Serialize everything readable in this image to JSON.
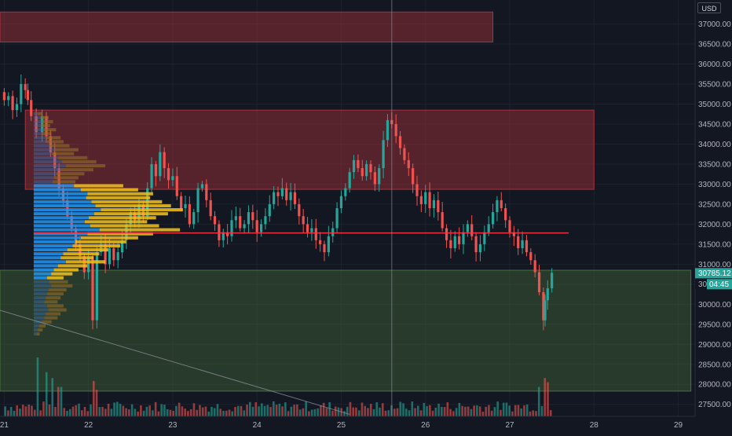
{
  "chart": {
    "currency": "USD",
    "last_price": "30785.12",
    "countdown": "04:45",
    "hidden_price_fragment": "30",
    "y_axis_ticks": [
      "37000.00",
      "36500.00",
      "36000.00",
      "35500.00",
      "35000.00",
      "34500.00",
      "34000.00",
      "33500.00",
      "33000.00",
      "32500.00",
      "32000.00",
      "31500.00",
      "31000.00",
      "30500.00",
      "30000.00",
      "29500.00",
      "29000.00",
      "28500.00",
      "28000.00",
      "27500.00"
    ],
    "x_axis_ticks": [
      "21",
      "22",
      "23",
      "24",
      "25",
      "26",
      "27",
      "28",
      "29"
    ],
    "colors": {
      "background": "#131722",
      "grid": "#1e222d",
      "bull": "#26a69a",
      "bear": "#ef5350",
      "poc_line": "#f23645",
      "resistance_zone": "#b2353f",
      "support_zone": "#4c7a3d",
      "volume_profile_value": "#f5c21b",
      "volume_profile_value_area": "#2196f3",
      "volume_profile_outside": "#8d6a2a",
      "price_badge": "#26a69a"
    }
  },
  "chart_data": {
    "type": "candlestick",
    "y_range": [
      27200,
      37600
    ],
    "x_range": [
      20.95,
      29.2
    ],
    "x_ticks": [
      21,
      22,
      23,
      24,
      25,
      26,
      27,
      28,
      29
    ],
    "zones": [
      {
        "name": "upper resistance",
        "from_x": 20.95,
        "to_x": 26.8,
        "low": 36550,
        "high": 37300
      },
      {
        "name": "resistance",
        "from_x": 21.25,
        "to_x": 28.0,
        "low": 32870,
        "high": 34850
      },
      {
        "name": "support",
        "from_x": 20.95,
        "to_x": 29.15,
        "low": 27830,
        "high": 30850
      }
    ],
    "poc_line": {
      "price": 31780,
      "from_x": 21.35,
      "to_x": 27.7
    },
    "crosshair_x": 25.6,
    "diagonal_line": {
      "from": [
        20.95,
        29850
      ],
      "to": [
        25.1,
        27250
      ]
    },
    "volume_profile": {
      "x_start": 21.35,
      "row_height": 100,
      "bins": [
        {
          "price": 34700,
          "value": 0.06,
          "area": "outside"
        },
        {
          "price": 34600,
          "value": 0.1,
          "area": "outside"
        },
        {
          "price": 34500,
          "value": 0.13,
          "area": "outside"
        },
        {
          "price": 34400,
          "value": 0.11,
          "area": "outside"
        },
        {
          "price": 34300,
          "value": 0.15,
          "area": "outside"
        },
        {
          "price": 34200,
          "value": 0.12,
          "area": "outside"
        },
        {
          "price": 34100,
          "value": 0.18,
          "area": "outside"
        },
        {
          "price": 34000,
          "value": 0.2,
          "area": "outside"
        },
        {
          "price": 33900,
          "value": 0.24,
          "area": "outside"
        },
        {
          "price": 33800,
          "value": 0.3,
          "area": "outside"
        },
        {
          "price": 33700,
          "value": 0.27,
          "area": "outside"
        },
        {
          "price": 33600,
          "value": 0.36,
          "area": "outside"
        },
        {
          "price": 33500,
          "value": 0.42,
          "area": "outside"
        },
        {
          "price": 33400,
          "value": 0.48,
          "area": "outside"
        },
        {
          "price": 33300,
          "value": 0.4,
          "area": "outside"
        },
        {
          "price": 33200,
          "value": 0.34,
          "area": "outside"
        },
        {
          "price": 33100,
          "value": 0.3,
          "area": "outside"
        },
        {
          "price": 33000,
          "value": 0.28,
          "area": "outside"
        },
        {
          "price": 32900,
          "value": 0.6,
          "area": "value"
        },
        {
          "price": 32800,
          "value": 0.7,
          "area": "value"
        },
        {
          "price": 32700,
          "value": 0.8,
          "area": "value"
        },
        {
          "price": 32600,
          "value": 0.78,
          "area": "value"
        },
        {
          "price": 32500,
          "value": 0.86,
          "area": "value"
        },
        {
          "price": 32400,
          "value": 0.92,
          "area": "value"
        },
        {
          "price": 32300,
          "value": 1.0,
          "area": "value"
        },
        {
          "price": 32200,
          "value": 0.9,
          "area": "value"
        },
        {
          "price": 32100,
          "value": 0.82,
          "area": "value"
        },
        {
          "price": 32000,
          "value": 0.76,
          "area": "value"
        },
        {
          "price": 31900,
          "value": 0.84,
          "area": "value"
        },
        {
          "price": 31800,
          "value": 0.98,
          "area": "value"
        },
        {
          "price": 31700,
          "value": 0.8,
          "area": "value"
        },
        {
          "price": 31600,
          "value": 0.7,
          "area": "value"
        },
        {
          "price": 31500,
          "value": 0.62,
          "area": "value"
        },
        {
          "price": 31400,
          "value": 0.58,
          "area": "value"
        },
        {
          "price": 31300,
          "value": 0.5,
          "area": "value"
        },
        {
          "price": 31200,
          "value": 0.44,
          "area": "value"
        },
        {
          "price": 31100,
          "value": 0.4,
          "area": "value"
        },
        {
          "price": 31000,
          "value": 0.48,
          "area": "value"
        },
        {
          "price": 30900,
          "value": 0.36,
          "area": "value"
        },
        {
          "price": 30800,
          "value": 0.3,
          "area": "value"
        },
        {
          "price": 30700,
          "value": 0.26,
          "area": "value"
        },
        {
          "price": 30600,
          "value": 0.2,
          "area": "value"
        },
        {
          "price": 30500,
          "value": 0.23,
          "area": "outside"
        },
        {
          "price": 30400,
          "value": 0.26,
          "area": "outside"
        },
        {
          "price": 30300,
          "value": 0.22,
          "area": "outside"
        },
        {
          "price": 30200,
          "value": 0.2,
          "area": "outside"
        },
        {
          "price": 30100,
          "value": 0.18,
          "area": "outside"
        },
        {
          "price": 30000,
          "value": 0.16,
          "area": "outside"
        },
        {
          "price": 29900,
          "value": 0.2,
          "area": "outside"
        },
        {
          "price": 29800,
          "value": 0.22,
          "area": "outside"
        },
        {
          "price": 29700,
          "value": 0.18,
          "area": "outside"
        },
        {
          "price": 29600,
          "value": 0.16,
          "area": "outside"
        },
        {
          "price": 29500,
          "value": 0.12,
          "area": "outside"
        },
        {
          "price": 29400,
          "value": 0.08,
          "area": "outside"
        },
        {
          "price": 29300,
          "value": 0.06,
          "area": "outside"
        },
        {
          "price": 29200,
          "value": 0.04,
          "area": "outside"
        }
      ]
    },
    "price_path": [
      [
        20.95,
        35300
      ],
      [
        21.0,
        35100
      ],
      [
        21.05,
        35200
      ],
      [
        21.1,
        34850
      ],
      [
        21.15,
        35000
      ],
      [
        21.2,
        35500
      ],
      [
        21.25,
        35350
      ],
      [
        21.28,
        35100
      ],
      [
        21.32,
        34700
      ],
      [
        21.38,
        34300
      ],
      [
        21.45,
        34700
      ],
      [
        21.5,
        34200
      ],
      [
        21.55,
        33800
      ],
      [
        21.6,
        33400
      ],
      [
        21.65,
        32900
      ],
      [
        21.7,
        32600
      ],
      [
        21.75,
        32200
      ],
      [
        21.8,
        31900
      ],
      [
        21.85,
        31500
      ],
      [
        21.9,
        31200
      ],
      [
        21.95,
        30800
      ],
      [
        22.0,
        31200
      ],
      [
        22.05,
        29600
      ],
      [
        22.1,
        31300
      ],
      [
        22.15,
        31500
      ],
      [
        22.2,
        31000
      ],
      [
        22.25,
        31400
      ],
      [
        22.3,
        31100
      ],
      [
        22.35,
        31300
      ],
      [
        22.4,
        31600
      ],
      [
        22.45,
        32000
      ],
      [
        22.5,
        32300
      ],
      [
        22.55,
        32100
      ],
      [
        22.6,
        32500
      ],
      [
        22.65,
        32200
      ],
      [
        22.7,
        32900
      ],
      [
        22.75,
        33500
      ],
      [
        22.8,
        33200
      ],
      [
        22.85,
        33800
      ],
      [
        22.9,
        33400
      ],
      [
        22.95,
        33100
      ],
      [
        23.0,
        33200
      ],
      [
        23.05,
        32700
      ],
      [
        23.1,
        32400
      ],
      [
        23.15,
        32500
      ],
      [
        23.2,
        32000
      ],
      [
        23.25,
        32300
      ],
      [
        23.3,
        32900
      ],
      [
        23.35,
        33000
      ],
      [
        23.4,
        32600
      ],
      [
        23.45,
        32200
      ],
      [
        23.5,
        32000
      ],
      [
        23.55,
        31600
      ],
      [
        23.6,
        31800
      ],
      [
        23.65,
        31700
      ],
      [
        23.7,
        32100
      ],
      [
        23.75,
        32200
      ],
      [
        23.8,
        31900
      ],
      [
        23.85,
        32000
      ],
      [
        23.9,
        32300
      ],
      [
        23.95,
        32100
      ],
      [
        24.0,
        31800
      ],
      [
        24.05,
        32000
      ],
      [
        24.1,
        32200
      ],
      [
        24.15,
        32500
      ],
      [
        24.2,
        32800
      ],
      [
        24.25,
        32700
      ],
      [
        24.3,
        32900
      ],
      [
        24.35,
        32600
      ],
      [
        24.4,
        32800
      ],
      [
        24.45,
        32500
      ],
      [
        24.5,
        32200
      ],
      [
        24.55,
        32000
      ],
      [
        24.6,
        31800
      ],
      [
        24.65,
        31900
      ],
      [
        24.7,
        31600
      ],
      [
        24.75,
        31500
      ],
      [
        24.8,
        31300
      ],
      [
        24.85,
        31700
      ],
      [
        24.9,
        31900
      ],
      [
        24.95,
        32400
      ],
      [
        25.0,
        32700
      ],
      [
        25.05,
        32900
      ],
      [
        25.1,
        33300
      ],
      [
        25.15,
        33600
      ],
      [
        25.2,
        33400
      ],
      [
        25.25,
        33200
      ],
      [
        25.3,
        33500
      ],
      [
        25.35,
        33300
      ],
      [
        25.4,
        33000
      ],
      [
        25.45,
        33400
      ],
      [
        25.5,
        34100
      ],
      [
        25.55,
        34600
      ],
      [
        25.6,
        34500
      ],
      [
        25.65,
        34200
      ],
      [
        25.7,
        33900
      ],
      [
        25.75,
        33600
      ],
      [
        25.8,
        33400
      ],
      [
        25.85,
        33000
      ],
      [
        25.9,
        32700
      ],
      [
        25.95,
        32500
      ],
      [
        26.0,
        32800
      ],
      [
        26.05,
        32400
      ],
      [
        26.1,
        32600
      ],
      [
        26.15,
        32300
      ],
      [
        26.2,
        31900
      ],
      [
        26.25,
        31600
      ],
      [
        26.3,
        31400
      ],
      [
        26.35,
        31700
      ],
      [
        26.4,
        31500
      ],
      [
        26.45,
        31800
      ],
      [
        26.5,
        32000
      ],
      [
        26.55,
        31700
      ],
      [
        26.6,
        31300
      ],
      [
        26.65,
        31500
      ],
      [
        26.7,
        31800
      ],
      [
        26.75,
        32000
      ],
      [
        26.8,
        32300
      ],
      [
        26.85,
        32600
      ],
      [
        26.9,
        32400
      ],
      [
        26.95,
        32100
      ],
      [
        27.0,
        31800
      ],
      [
        27.05,
        31700
      ],
      [
        27.1,
        31400
      ],
      [
        27.15,
        31600
      ],
      [
        27.2,
        31300
      ],
      [
        27.25,
        31100
      ],
      [
        27.3,
        30800
      ],
      [
        27.35,
        30300
      ],
      [
        27.4,
        29600
      ],
      [
        27.42,
        30100
      ],
      [
        27.45,
        30400
      ],
      [
        27.5,
        30785
      ]
    ],
    "volume_peaks": [
      [
        21.4,
        1.0
      ],
      [
        21.5,
        0.75
      ],
      [
        21.55,
        0.65
      ],
      [
        21.65,
        0.5
      ],
      [
        22.05,
        0.6
      ],
      [
        22.1,
        0.45
      ],
      [
        27.35,
        0.5
      ],
      [
        27.4,
        0.65
      ],
      [
        27.45,
        0.58
      ]
    ]
  }
}
